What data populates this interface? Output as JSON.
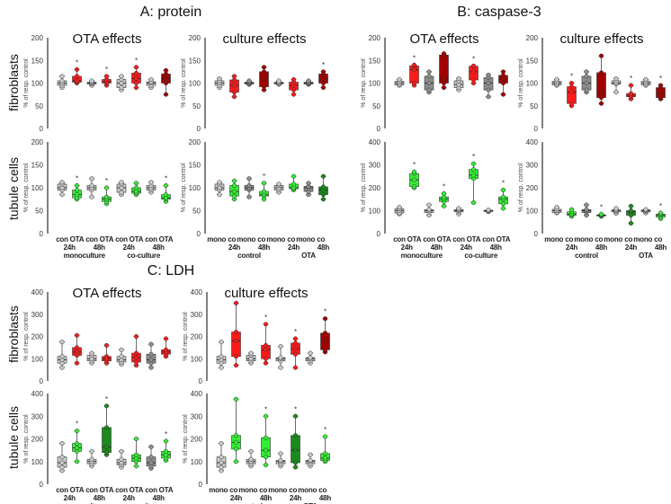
{
  "figure_titles": {
    "A": "A: protein",
    "B": "B: caspase-3",
    "C": "C: LDH"
  },
  "row_labels": {
    "fibroblasts": "fibroblasts",
    "tubule": "tubule cells"
  },
  "ylabel": "% of resp. control",
  "colors": {
    "lg": "#c9c9c9",
    "g": "#8e8e8e",
    "r": "#ff1a1a",
    "dr": "#a30000",
    "lgr": "#33ee33",
    "dg": "#1c8a1c"
  },
  "xlabels": {
    "ota": {
      "row1": [
        "con",
        "OTA",
        "con",
        "OTA",
        "con",
        "OTA",
        "con",
        "OTA"
      ],
      "row2": [
        "24h",
        "48h",
        "24h",
        "48h"
      ],
      "row3": [
        "monoculture",
        "co-culture"
      ]
    },
    "culture": {
      "row1": [
        "mono",
        "co",
        "mono",
        "co",
        "mono",
        "co",
        "mono",
        "co"
      ],
      "row2": [
        "24h",
        "48h",
        "24h",
        "48h"
      ],
      "row3": [
        "control",
        "OTA"
      ]
    }
  },
  "chart_data": [
    {
      "id": "A-fib-ota",
      "type": "box",
      "title": "OTA effects",
      "ylim": [
        0,
        200
      ],
      "yticks": [
        0,
        50,
        100,
        150,
        200
      ],
      "boxes": [
        {
          "min": 90,
          "q1": 95,
          "med": 100,
          "q3": 105,
          "max": 115,
          "color": "lg"
        },
        {
          "min": 100,
          "q1": 102,
          "med": 105,
          "q3": 115,
          "max": 130,
          "color": "r",
          "sig": "*"
        },
        {
          "min": 95,
          "q1": 98,
          "med": 100,
          "q3": 102,
          "max": 105,
          "color": "lg"
        },
        {
          "min": 95,
          "q1": 100,
          "med": 103,
          "q3": 108,
          "max": 115,
          "color": "r",
          "sig": "*"
        },
        {
          "min": 85,
          "q1": 90,
          "med": 100,
          "q3": 108,
          "max": 115,
          "color": "lg"
        },
        {
          "min": 90,
          "q1": 100,
          "med": 110,
          "q3": 122,
          "max": 135,
          "color": "r",
          "sig": "*"
        },
        {
          "min": 90,
          "q1": 95,
          "med": 100,
          "q3": 103,
          "max": 108,
          "color": "lg"
        },
        {
          "min": 75,
          "q1": 100,
          "med": 110,
          "q3": 120,
          "max": 128,
          "color": "dr"
        }
      ]
    },
    {
      "id": "A-fib-culture",
      "type": "box",
      "title": "culture effects",
      "ylim": [
        0,
        200
      ],
      "yticks": [
        0,
        50,
        100,
        150,
        200
      ],
      "boxes": [
        {
          "min": 90,
          "q1": 95,
          "med": 100,
          "q3": 105,
          "max": 110,
          "color": "lg"
        },
        {
          "min": 70,
          "q1": 80,
          "med": 95,
          "q3": 107,
          "max": 115,
          "color": "r"
        },
        {
          "min": 97,
          "q1": 98,
          "med": 100,
          "q3": 102,
          "max": 105,
          "color": "g"
        },
        {
          "min": 85,
          "q1": 92,
          "med": 110,
          "q3": 125,
          "max": 135,
          "color": "dr"
        },
        {
          "min": 97,
          "q1": 98,
          "med": 100,
          "q3": 102,
          "max": 105,
          "color": "lg"
        },
        {
          "min": 75,
          "q1": 85,
          "med": 95,
          "q3": 102,
          "max": 108,
          "color": "r"
        },
        {
          "min": 97,
          "q1": 98,
          "med": 100,
          "q3": 102,
          "max": 105,
          "color": "g"
        },
        {
          "min": 90,
          "q1": 100,
          "med": 110,
          "q3": 120,
          "max": 125,
          "color": "dr",
          "sig": "*"
        }
      ]
    },
    {
      "id": "A-tub-ota",
      "type": "box",
      "ylim": [
        0,
        200
      ],
      "yticks": [
        0,
        50,
        100,
        150,
        200
      ],
      "boxes": [
        {
          "min": 85,
          "q1": 95,
          "med": 100,
          "q3": 108,
          "max": 112,
          "color": "lg"
        },
        {
          "min": 75,
          "q1": 78,
          "med": 85,
          "q3": 95,
          "max": 105,
          "color": "lgr",
          "sig": "*"
        },
        {
          "min": 80,
          "q1": 95,
          "med": 100,
          "q3": 105,
          "max": 120,
          "color": "lg"
        },
        {
          "min": 65,
          "q1": 70,
          "med": 75,
          "q3": 80,
          "max": 100,
          "color": "lgr",
          "sig": "*"
        },
        {
          "min": 85,
          "q1": 90,
          "med": 100,
          "q3": 108,
          "max": 112,
          "color": "lg"
        },
        {
          "min": 85,
          "q1": 88,
          "med": 92,
          "q3": 100,
          "max": 110,
          "color": "lgr"
        },
        {
          "min": 90,
          "q1": 95,
          "med": 100,
          "q3": 105,
          "max": 112,
          "color": "lg"
        },
        {
          "min": 70,
          "q1": 75,
          "med": 78,
          "q3": 85,
          "max": 105,
          "color": "lgr",
          "sig": "*"
        }
      ]
    },
    {
      "id": "A-tub-culture",
      "type": "box",
      "ylim": [
        0,
        200
      ],
      "yticks": [
        0,
        50,
        100,
        150,
        200
      ],
      "boxes": [
        {
          "min": 85,
          "q1": 95,
          "med": 100,
          "q3": 108,
          "max": 112,
          "color": "lg"
        },
        {
          "min": 75,
          "q1": 82,
          "med": 92,
          "q3": 105,
          "max": 115,
          "color": "lgr"
        },
        {
          "min": 80,
          "q1": 95,
          "med": 100,
          "q3": 105,
          "max": 120,
          "color": "g"
        },
        {
          "min": 75,
          "q1": 82,
          "med": 85,
          "q3": 92,
          "max": 110,
          "color": "lgr",
          "sig": "*"
        },
        {
          "min": 90,
          "q1": 95,
          "med": 100,
          "q3": 105,
          "max": 108,
          "color": "lg"
        },
        {
          "min": 95,
          "q1": 98,
          "med": 100,
          "q3": 108,
          "max": 125,
          "color": "lgr"
        },
        {
          "min": 85,
          "q1": 92,
          "med": 100,
          "q3": 103,
          "max": 110,
          "color": "g"
        },
        {
          "min": 75,
          "q1": 85,
          "med": 95,
          "q3": 102,
          "max": 125,
          "color": "dg"
        }
      ]
    },
    {
      "id": "B-fib-ota",
      "type": "box",
      "title": "OTA effects",
      "ylim": [
        0,
        200
      ],
      "yticks": [
        0,
        50,
        100,
        150,
        200
      ],
      "boxes": [
        {
          "min": 95,
          "q1": 96,
          "med": 100,
          "q3": 104,
          "max": 108,
          "color": "lg"
        },
        {
          "min": 95,
          "q1": 100,
          "med": 130,
          "q3": 138,
          "max": 140,
          "color": "r",
          "sig": "*"
        },
        {
          "min": 80,
          "q1": 85,
          "med": 100,
          "q3": 115,
          "max": 125,
          "color": "g"
        },
        {
          "min": 90,
          "q1": 100,
          "med": 110,
          "q3": 162,
          "max": 165,
          "color": "dr"
        },
        {
          "min": 85,
          "q1": 90,
          "med": 97,
          "q3": 105,
          "max": 110,
          "color": "lg"
        },
        {
          "min": 100,
          "q1": 107,
          "med": 125,
          "q3": 137,
          "max": 138,
          "color": "r",
          "sig": "*"
        },
        {
          "min": 70,
          "q1": 85,
          "med": 100,
          "q3": 112,
          "max": 118,
          "color": "g"
        },
        {
          "min": 75,
          "q1": 100,
          "med": 110,
          "q3": 117,
          "max": 125,
          "color": "dr"
        }
      ]
    },
    {
      "id": "B-fib-culture",
      "type": "box",
      "title": "culture effects",
      "ylim": [
        0,
        200
      ],
      "yticks": [
        0,
        50,
        100,
        150,
        200
      ],
      "boxes": [
        {
          "min": 95,
          "q1": 96,
          "med": 100,
          "q3": 104,
          "max": 108,
          "color": "lg"
        },
        {
          "min": 50,
          "q1": 55,
          "med": 80,
          "q3": 92,
          "max": 100,
          "color": "r",
          "sig": "*"
        },
        {
          "min": 80,
          "q1": 85,
          "med": 100,
          "q3": 115,
          "max": 125,
          "color": "g"
        },
        {
          "min": 55,
          "q1": 68,
          "med": 80,
          "q3": 123,
          "max": 160,
          "color": "dr"
        },
        {
          "min": 80,
          "q1": 98,
          "med": 100,
          "q3": 105,
          "max": 110,
          "color": "lg"
        },
        {
          "min": 65,
          "q1": 70,
          "med": 73,
          "q3": 77,
          "max": 95,
          "color": "r",
          "sig": "*"
        },
        {
          "min": 95,
          "q1": 96,
          "med": 100,
          "q3": 104,
          "max": 108,
          "color": "lg"
        },
        {
          "min": 65,
          "q1": 68,
          "med": 77,
          "q3": 90,
          "max": 95,
          "color": "dr",
          "sig": "*"
        }
      ]
    },
    {
      "id": "B-tub-ota",
      "type": "box",
      "ylim": [
        0,
        400
      ],
      "yticks": [
        0,
        100,
        200,
        300,
        400
      ],
      "boxes": [
        {
          "min": 85,
          "q1": 90,
          "med": 100,
          "q3": 108,
          "max": 115,
          "color": "lg"
        },
        {
          "min": 200,
          "q1": 205,
          "med": 235,
          "q3": 262,
          "max": 270,
          "color": "lgr",
          "sig": "*"
        },
        {
          "min": 80,
          "q1": 92,
          "med": 100,
          "q3": 105,
          "max": 125,
          "color": "lg"
        },
        {
          "min": 120,
          "q1": 140,
          "med": 150,
          "q3": 160,
          "max": 175,
          "color": "lgr",
          "sig": "*"
        },
        {
          "min": 85,
          "q1": 95,
          "med": 100,
          "q3": 105,
          "max": 110,
          "color": "lg"
        },
        {
          "min": 135,
          "q1": 240,
          "med": 255,
          "q3": 280,
          "max": 305,
          "color": "lgr",
          "sig": "*"
        },
        {
          "min": 95,
          "q1": 96,
          "med": 100,
          "q3": 102,
          "max": 103,
          "color": "lg"
        },
        {
          "min": 110,
          "q1": 130,
          "med": 150,
          "q3": 160,
          "max": 190,
          "color": "lgr",
          "sig": "*"
        }
      ]
    },
    {
      "id": "B-tub-culture",
      "type": "box",
      "ylim": [
        0,
        400
      ],
      "yticks": [
        0,
        100,
        200,
        300,
        400
      ],
      "boxes": [
        {
          "min": 90,
          "q1": 92,
          "med": 100,
          "q3": 106,
          "max": 115,
          "color": "lg"
        },
        {
          "min": 75,
          "q1": 80,
          "med": 85,
          "q3": 95,
          "max": 105,
          "color": "lgr"
        },
        {
          "min": 80,
          "q1": 92,
          "med": 100,
          "q3": 105,
          "max": 125,
          "color": "g"
        },
        {
          "min": 75,
          "q1": 77,
          "med": 80,
          "q3": 82,
          "max": 85,
          "color": "lgr",
          "sig": "*"
        },
        {
          "min": 88,
          "q1": 95,
          "med": 100,
          "q3": 103,
          "max": 110,
          "color": "lg"
        },
        {
          "min": 45,
          "q1": 80,
          "med": 95,
          "q3": 100,
          "max": 120,
          "color": "dg"
        },
        {
          "min": 90,
          "q1": 95,
          "med": 100,
          "q3": 103,
          "max": 105,
          "color": "lg"
        },
        {
          "min": 65,
          "q1": 72,
          "med": 80,
          "q3": 85,
          "max": 90,
          "color": "lgr",
          "sig": "*"
        }
      ]
    },
    {
      "id": "C-fib-ota",
      "type": "box",
      "title": "OTA effects",
      "ylim": [
        0,
        400
      ],
      "yticks": [
        0,
        100,
        200,
        300,
        400
      ],
      "boxes": [
        {
          "min": 60,
          "q1": 80,
          "med": 95,
          "q3": 110,
          "max": 175,
          "color": "lg"
        },
        {
          "min": 80,
          "q1": 115,
          "med": 130,
          "q3": 150,
          "max": 205,
          "color": "r"
        },
        {
          "min": 80,
          "q1": 90,
          "med": 100,
          "q3": 115,
          "max": 125,
          "color": "lg"
        },
        {
          "min": 80,
          "q1": 90,
          "med": 100,
          "q3": 110,
          "max": 160,
          "color": "r"
        },
        {
          "min": 75,
          "q1": 85,
          "med": 95,
          "q3": 110,
          "max": 140,
          "color": "lg"
        },
        {
          "min": 70,
          "q1": 85,
          "med": 105,
          "q3": 125,
          "max": 200,
          "color": "r"
        },
        {
          "min": 60,
          "q1": 80,
          "med": 95,
          "q3": 120,
          "max": 165,
          "color": "g"
        },
        {
          "min": 110,
          "q1": 120,
          "med": 130,
          "q3": 140,
          "max": 190,
          "color": "r"
        }
      ]
    },
    {
      "id": "C-fib-culture",
      "type": "box",
      "title": "culture effects",
      "ylim": [
        0,
        400
      ],
      "yticks": [
        0,
        100,
        200,
        300,
        400
      ],
      "boxes": [
        {
          "min": 60,
          "q1": 80,
          "med": 95,
          "q3": 110,
          "max": 175,
          "color": "lg"
        },
        {
          "min": 70,
          "q1": 110,
          "med": 180,
          "q3": 220,
          "max": 350,
          "color": "r"
        },
        {
          "min": 80,
          "q1": 90,
          "med": 100,
          "q3": 115,
          "max": 125,
          "color": "lg"
        },
        {
          "min": 80,
          "q1": 100,
          "med": 140,
          "q3": 160,
          "max": 255,
          "color": "r",
          "sig": "*"
        },
        {
          "min": 60,
          "q1": 90,
          "med": 100,
          "q3": 105,
          "max": 155,
          "color": "lg"
        },
        {
          "min": 60,
          "q1": 120,
          "med": 145,
          "q3": 170,
          "max": 190,
          "color": "r",
          "sig": "*"
        },
        {
          "min": 80,
          "q1": 90,
          "med": 100,
          "q3": 105,
          "max": 125,
          "color": "lg"
        },
        {
          "min": 130,
          "q1": 140,
          "med": 180,
          "q3": 215,
          "max": 280,
          "color": "dr",
          "sig": "*"
        }
      ]
    },
    {
      "id": "C-tub-ota",
      "type": "box",
      "ylim": [
        0,
        400
      ],
      "yticks": [
        0,
        100,
        200,
        300,
        400
      ],
      "boxes": [
        {
          "min": 60,
          "q1": 75,
          "med": 95,
          "q3": 120,
          "max": 180,
          "color": "lg"
        },
        {
          "min": 100,
          "q1": 145,
          "med": 160,
          "q3": 180,
          "max": 235,
          "color": "lgr",
          "sig": "*"
        },
        {
          "min": 80,
          "q1": 90,
          "med": 100,
          "q3": 110,
          "max": 145,
          "color": "lg"
        },
        {
          "min": 130,
          "q1": 140,
          "med": 165,
          "q3": 250,
          "max": 345,
          "color": "dg",
          "sig": "*"
        },
        {
          "min": 75,
          "q1": 85,
          "med": 95,
          "q3": 110,
          "max": 145,
          "color": "lg"
        },
        {
          "min": 80,
          "q1": 100,
          "med": 115,
          "q3": 130,
          "max": 200,
          "color": "lgr"
        },
        {
          "min": 70,
          "q1": 80,
          "med": 95,
          "q3": 120,
          "max": 165,
          "color": "g"
        },
        {
          "min": 105,
          "q1": 115,
          "med": 130,
          "q3": 145,
          "max": 190,
          "color": "lgr",
          "sig": "*"
        }
      ]
    },
    {
      "id": "C-tub-culture",
      "type": "box",
      "ylim": [
        0,
        400
      ],
      "yticks": [
        0,
        100,
        200,
        300,
        400
      ],
      "boxes": [
        {
          "min": 60,
          "q1": 75,
          "med": 95,
          "q3": 120,
          "max": 180,
          "color": "lg"
        },
        {
          "min": 100,
          "q1": 155,
          "med": 185,
          "q3": 215,
          "max": 375,
          "color": "lgr"
        },
        {
          "min": 80,
          "q1": 90,
          "med": 100,
          "q3": 110,
          "max": 145,
          "color": "lg"
        },
        {
          "min": 85,
          "q1": 120,
          "med": 150,
          "q3": 205,
          "max": 300,
          "color": "lgr",
          "sig": "*"
        },
        {
          "min": 80,
          "q1": 90,
          "med": 100,
          "q3": 105,
          "max": 135,
          "color": "lg"
        },
        {
          "min": 75,
          "q1": 95,
          "med": 150,
          "q3": 215,
          "max": 300,
          "color": "dg",
          "sig": "*"
        },
        {
          "min": 80,
          "q1": 90,
          "med": 100,
          "q3": 105,
          "max": 130,
          "color": "lg"
        },
        {
          "min": 100,
          "q1": 105,
          "med": 115,
          "q3": 135,
          "max": 210,
          "color": "lgr",
          "sig": "*"
        }
      ]
    }
  ]
}
